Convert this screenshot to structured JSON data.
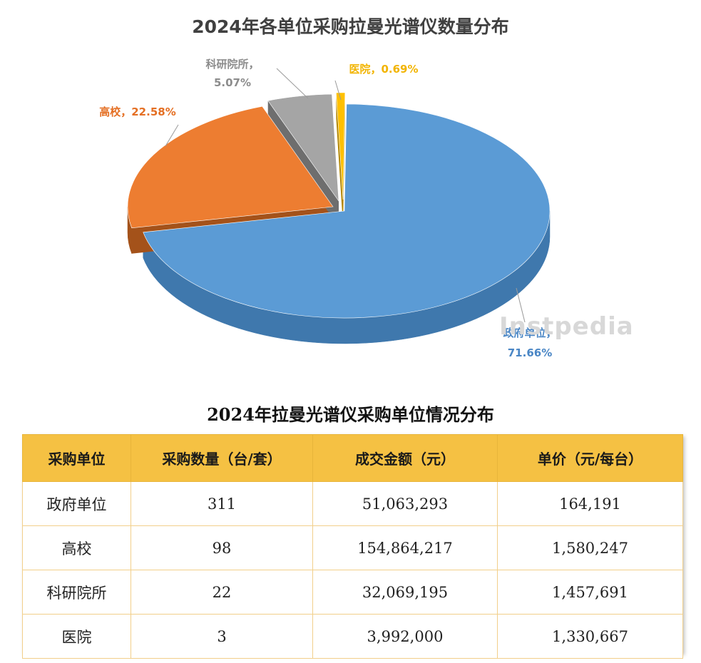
{
  "chart_data": {
    "type": "pie",
    "title": "2024年各单位采购拉曼光谱仪数量分布",
    "slices": [
      {
        "name": "政府单位",
        "value": 71.66,
        "label_name": "政府单位，",
        "label_value": "71.66%",
        "color": "#5b9bd5",
        "side_color": "#3f78ad"
      },
      {
        "name": "高校",
        "value": 22.58,
        "label_name": "高校，",
        "label_value": "22.58%",
        "color": "#ed7d31",
        "side_color": "#a4521a"
      },
      {
        "name": "科研院所",
        "value": 5.07,
        "label_name": "科研院所，",
        "label_value": "5.07%",
        "color": "#a5a5a5",
        "side_color": "#6e6e6e"
      },
      {
        "name": "医院",
        "value": 0.69,
        "label_name": "医院，",
        "label_value": "0.69%",
        "color": "#ffc000",
        "side_color": "#b38600"
      }
    ],
    "label_colors": {
      "政府单位": "#4a86c5",
      "高校": "#e46f23",
      "科研院所": "#8c8c8c",
      "医院": "#f2b400"
    },
    "legend": "none"
  },
  "watermark": "Instpedia",
  "table": {
    "title": "2024年拉曼光谱仪采购单位情况分布",
    "headers": [
      "采购单位",
      "采购数量（台/套）",
      "成交金额（元）",
      "单价（元/每台）"
    ],
    "rows": [
      [
        "政府单位",
        "311",
        "51,063,293",
        "164,191"
      ],
      [
        "高校",
        "98",
        "154,864,217",
        "1,580,247"
      ],
      [
        "科研院所",
        "22",
        "32,069,195",
        "1,457,691"
      ],
      [
        "医院",
        "3",
        "3,992,000",
        "1,330,667"
      ]
    ]
  }
}
